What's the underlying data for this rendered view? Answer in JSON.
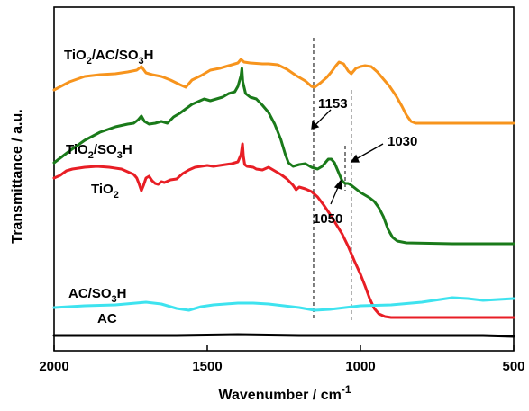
{
  "chart_data": {
    "type": "line",
    "title": "",
    "xlabel": "Wavenumber / cm",
    "xlabel_sup": "-1",
    "ylabel": "Transmittance / a.u.",
    "xlim": [
      2000,
      500
    ],
    "x_reversed": true,
    "x_ticks": [
      2000,
      1500,
      1000,
      500
    ],
    "x_tick_labels": [
      "2000",
      "1500",
      "1000",
      "500"
    ],
    "y_ticks_shown": false,
    "grid": false,
    "legend": "none (series labelled directly on plot)",
    "series": [
      {
        "name": "TiO2/AC/SO3H",
        "label_main": "TiO",
        "label_parts": [
          "2",
          "/AC/SO",
          "3",
          "H"
        ],
        "color": "#f7941d",
        "points": [
          [
            2000,
            100
          ],
          [
            1950,
            91
          ],
          [
            1900,
            85
          ],
          [
            1850,
            83
          ],
          [
            1800,
            82
          ],
          [
            1760,
            80
          ],
          [
            1730,
            78
          ],
          [
            1715,
            74
          ],
          [
            1700,
            81
          ],
          [
            1680,
            83
          ],
          [
            1650,
            85
          ],
          [
            1620,
            89
          ],
          [
            1590,
            94
          ],
          [
            1570,
            97
          ],
          [
            1550,
            89
          ],
          [
            1520,
            84
          ],
          [
            1490,
            78
          ],
          [
            1460,
            76
          ],
          [
            1430,
            73
          ],
          [
            1400,
            70
          ],
          [
            1390,
            66
          ],
          [
            1380,
            69
          ],
          [
            1360,
            70
          ],
          [
            1320,
            71
          ],
          [
            1300,
            71
          ],
          [
            1270,
            72
          ],
          [
            1240,
            77
          ],
          [
            1210,
            84
          ],
          [
            1180,
            90
          ],
          [
            1160,
            96
          ],
          [
            1150,
            97
          ],
          [
            1130,
            92
          ],
          [
            1110,
            86
          ],
          [
            1095,
            80
          ],
          [
            1080,
            73
          ],
          [
            1070,
            69
          ],
          [
            1055,
            71
          ],
          [
            1040,
            79
          ],
          [
            1030,
            82
          ],
          [
            1015,
            76
          ],
          [
            1000,
            74
          ],
          [
            985,
            73
          ],
          [
            965,
            74
          ],
          [
            945,
            80
          ],
          [
            925,
            88
          ],
          [
            905,
            96
          ],
          [
            885,
            106
          ],
          [
            865,
            118
          ],
          [
            850,
            128
          ],
          [
            835,
            135
          ],
          [
            820,
            137
          ],
          [
            700,
            137
          ],
          [
            600,
            137
          ],
          [
            500,
            137
          ]
        ]
      },
      {
        "name": "TiO2/SO3H",
        "label_main": "TiO",
        "label_parts": [
          "2",
          "/SO",
          "3",
          "H"
        ],
        "color": "#1a7a1a",
        "points": [
          [
            2000,
            181
          ],
          [
            1950,
            168
          ],
          [
            1900,
            156
          ],
          [
            1850,
            147
          ],
          [
            1800,
            141
          ],
          [
            1760,
            138
          ],
          [
            1740,
            137
          ],
          [
            1725,
            133
          ],
          [
            1715,
            129
          ],
          [
            1705,
            135
          ],
          [
            1690,
            138
          ],
          [
            1670,
            137
          ],
          [
            1650,
            135
          ],
          [
            1630,
            137
          ],
          [
            1610,
            130
          ],
          [
            1590,
            126
          ],
          [
            1570,
            121
          ],
          [
            1550,
            116
          ],
          [
            1530,
            113
          ],
          [
            1510,
            110
          ],
          [
            1490,
            112
          ],
          [
            1470,
            110
          ],
          [
            1450,
            108
          ],
          [
            1430,
            104
          ],
          [
            1410,
            102
          ],
          [
            1400,
            96
          ],
          [
            1390,
            84
          ],
          [
            1387,
            76
          ],
          [
            1384,
            91
          ],
          [
            1375,
            104
          ],
          [
            1360,
            108
          ],
          [
            1340,
            110
          ],
          [
            1320,
            117
          ],
          [
            1300,
            125
          ],
          [
            1280,
            138
          ],
          [
            1260,
            155
          ],
          [
            1245,
            172
          ],
          [
            1235,
            181
          ],
          [
            1220,
            185
          ],
          [
            1200,
            183
          ],
          [
            1180,
            182
          ],
          [
            1160,
            186
          ],
          [
            1140,
            188
          ],
          [
            1125,
            185
          ],
          [
            1115,
            181
          ],
          [
            1105,
            177
          ],
          [
            1095,
            177
          ],
          [
            1085,
            181
          ],
          [
            1070,
            193
          ],
          [
            1060,
            201
          ],
          [
            1050,
            204
          ],
          [
            1040,
            204
          ],
          [
            1030,
            206
          ],
          [
            1015,
            210
          ],
          [
            1000,
            214
          ],
          [
            985,
            217
          ],
          [
            970,
            220
          ],
          [
            955,
            224
          ],
          [
            940,
            231
          ],
          [
            925,
            241
          ],
          [
            910,
            255
          ],
          [
            895,
            264
          ],
          [
            880,
            268
          ],
          [
            850,
            270
          ],
          [
            700,
            271
          ],
          [
            600,
            271
          ],
          [
            500,
            271
          ]
        ]
      },
      {
        "name": "TiO2",
        "label_main": "TiO",
        "label_parts": [
          "2"
        ],
        "color": "#e81e25",
        "points": [
          [
            2000,
            198
          ],
          [
            1980,
            195
          ],
          [
            1960,
            190
          ],
          [
            1940,
            188
          ],
          [
            1900,
            186
          ],
          [
            1860,
            185
          ],
          [
            1820,
            186
          ],
          [
            1780,
            188
          ],
          [
            1760,
            191
          ],
          [
            1740,
            194
          ],
          [
            1730,
            198
          ],
          [
            1722,
            205
          ],
          [
            1715,
            212
          ],
          [
            1708,
            206
          ],
          [
            1700,
            198
          ],
          [
            1690,
            196
          ],
          [
            1680,
            201
          ],
          [
            1670,
            204
          ],
          [
            1660,
            205
          ],
          [
            1650,
            202
          ],
          [
            1640,
            203
          ],
          [
            1620,
            200
          ],
          [
            1600,
            199
          ],
          [
            1580,
            193
          ],
          [
            1560,
            189
          ],
          [
            1540,
            186
          ],
          [
            1520,
            185
          ],
          [
            1500,
            184
          ],
          [
            1480,
            185
          ],
          [
            1460,
            184
          ],
          [
            1440,
            183
          ],
          [
            1420,
            182
          ],
          [
            1400,
            180
          ],
          [
            1390,
            172
          ],
          [
            1385,
            160
          ],
          [
            1382,
            174
          ],
          [
            1378,
            183
          ],
          [
            1370,
            185
          ],
          [
            1350,
            186
          ],
          [
            1340,
            188
          ],
          [
            1320,
            189
          ],
          [
            1300,
            186
          ],
          [
            1280,
            190
          ],
          [
            1260,
            194
          ],
          [
            1240,
            199
          ],
          [
            1220,
            206
          ],
          [
            1210,
            211
          ],
          [
            1200,
            208
          ],
          [
            1180,
            210
          ],
          [
            1160,
            213
          ],
          [
            1140,
            219
          ],
          [
            1120,
            228
          ],
          [
            1100,
            238
          ],
          [
            1080,
            249
          ],
          [
            1060,
            260
          ],
          [
            1040,
            274
          ],
          [
            1020,
            290
          ],
          [
            1000,
            305
          ],
          [
            985,
            318
          ],
          [
            970,
            332
          ],
          [
            955,
            343
          ],
          [
            940,
            349
          ],
          [
            920,
            352
          ],
          [
            900,
            353
          ],
          [
            800,
            353
          ],
          [
            700,
            353
          ],
          [
            600,
            353
          ],
          [
            500,
            353
          ]
        ]
      },
      {
        "name": "AC/SO3H",
        "label_main": "AC/SO",
        "label_parts": [
          "3",
          "H"
        ],
        "color": "#3ee3ef",
        "points": [
          [
            2000,
            342
          ],
          [
            1900,
            340
          ],
          [
            1800,
            339
          ],
          [
            1700,
            336
          ],
          [
            1650,
            338
          ],
          [
            1600,
            343
          ],
          [
            1560,
            345
          ],
          [
            1520,
            341
          ],
          [
            1480,
            339
          ],
          [
            1440,
            338
          ],
          [
            1400,
            337
          ],
          [
            1350,
            337
          ],
          [
            1300,
            338
          ],
          [
            1250,
            340
          ],
          [
            1200,
            342
          ],
          [
            1150,
            345
          ],
          [
            1100,
            344
          ],
          [
            1050,
            342
          ],
          [
            1000,
            340
          ],
          [
            900,
            339
          ],
          [
            800,
            336
          ],
          [
            700,
            331
          ],
          [
            650,
            332
          ],
          [
            600,
            334
          ],
          [
            500,
            332
          ]
        ]
      },
      {
        "name": "AC",
        "label_main": "AC",
        "label_parts": [],
        "color": "#000000",
        "points": [
          [
            2000,
            373
          ],
          [
            1800,
            373
          ],
          [
            1600,
            373
          ],
          [
            1400,
            372
          ],
          [
            1200,
            373
          ],
          [
            1000,
            373
          ],
          [
            800,
            373
          ],
          [
            600,
            373
          ],
          [
            500,
            374
          ]
        ]
      }
    ],
    "annotations": [
      {
        "label": "1153",
        "wavenumber": 1153
      },
      {
        "label": "1050",
        "wavenumber": 1050
      },
      {
        "label": "1030",
        "wavenumber": 1030
      }
    ]
  }
}
